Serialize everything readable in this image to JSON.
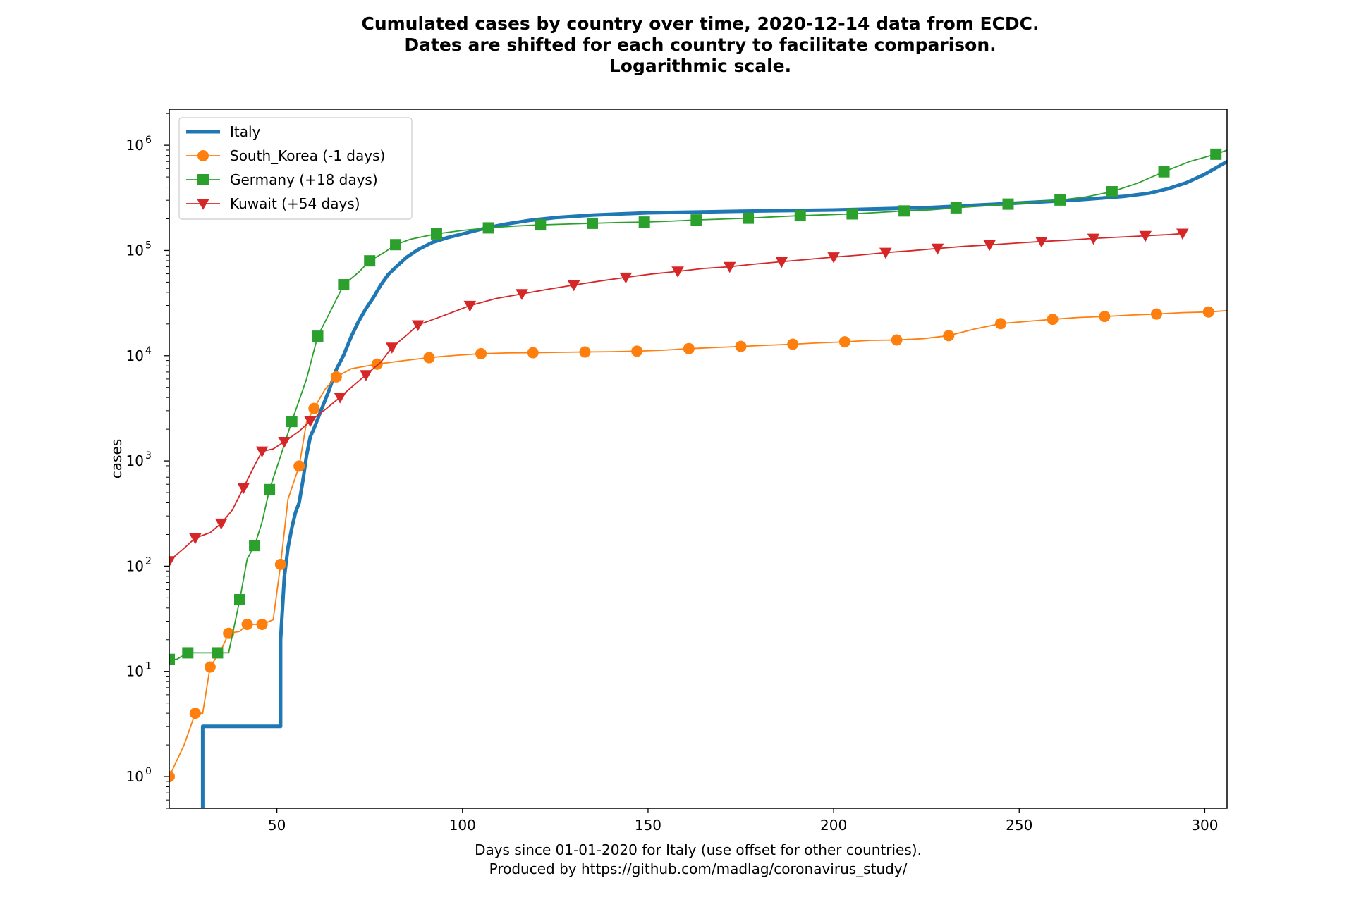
{
  "chart_data": {
    "type": "line",
    "title_lines": [
      "Cumulated cases by country over time, 2020-12-14 data from ECDC.",
      "Dates are shifted for each country to facilitate comparison.",
      "Logarithmic scale."
    ],
    "xlabel_lines": [
      "Days since 01-01-2020 for Italy (use offset for other countries).",
      "Produced by https://github.com/madlag/coronavirus_study/"
    ],
    "ylabel": "cases",
    "yscale": "log",
    "xlim": [
      21,
      306
    ],
    "ylim": [
      0.5,
      2200000
    ],
    "xticks": [
      50,
      100,
      150,
      200,
      250,
      300
    ],
    "yticks": [
      {
        "value": 1,
        "base": "10",
        "exp": "0"
      },
      {
        "value": 10,
        "base": "10",
        "exp": "1"
      },
      {
        "value": 100,
        "base": "10",
        "exp": "2"
      },
      {
        "value": 1000,
        "base": "10",
        "exp": "3"
      },
      {
        "value": 10000,
        "base": "10",
        "exp": "4"
      },
      {
        "value": 100000,
        "base": "10",
        "exp": "5"
      },
      {
        "value": 1000000,
        "base": "10",
        "exp": "6"
      }
    ],
    "legend_position": "top-left",
    "series": [
      {
        "name": "Italy",
        "color": "#1f77b4",
        "marker": "none",
        "width": 5,
        "step": true,
        "x": [
          30,
          30,
          51,
          51,
          52,
          53,
          54,
          55,
          56,
          57,
          58,
          59,
          60,
          62,
          64,
          66,
          68,
          70,
          72,
          74,
          76,
          78,
          80,
          82,
          85,
          88,
          92,
          96,
          100,
          106,
          112,
          118,
          125,
          135,
          150,
          175,
          200,
          225,
          250,
          265,
          278,
          285,
          290,
          295,
          300,
          306
        ],
        "y": [
          0.4,
          3,
          3,
          20,
          79,
          150,
          229,
          322,
          400,
          650,
          1128,
          1694,
          2036,
          3089,
          4636,
          7375,
          10149,
          15113,
          21157,
          27980,
          35713,
          47021,
          59138,
          69176,
          86498,
          101739,
          119827,
          132547,
          143626,
          162488,
          178972,
          192994,
          205463,
          217185,
          228006,
          235763,
          242639,
          255278,
          283000,
          301000,
          326000,
          350000,
          386000,
          440000,
          530000,
          700000
        ]
      },
      {
        "name": "South_Korea (-1 days)",
        "color": "#ff7f0e",
        "marker": "circle",
        "width": 1.8,
        "x": [
          21,
          25,
          28,
          30,
          32,
          35,
          37,
          40,
          42,
          44,
          46,
          49,
          51,
          53,
          56,
          58,
          60,
          63,
          66,
          70,
          77,
          84,
          91,
          98,
          105,
          112,
          119,
          126,
          133,
          140,
          147,
          154,
          161,
          168,
          175,
          182,
          189,
          196,
          203,
          210,
          217,
          224,
          231,
          238,
          245,
          252,
          259,
          266,
          273,
          280,
          287,
          294,
          301,
          306
        ],
        "y": [
          1,
          2,
          4,
          4,
          11,
          16,
          23,
          24,
          28,
          28,
          28,
          31,
          104,
          433,
          893,
          2337,
          3150,
          4812,
          6284,
          7513,
          8320,
          8961,
          9583,
          10062,
          10450,
          10613,
          10674,
          10761,
          10840,
          10909,
          11037,
          11265,
          11668,
          11947,
          12257,
          12563,
          12850,
          13244,
          13551,
          13979,
          14092,
          14499,
          15515,
          17945,
          20182,
          21177,
          22176,
          23106,
          23611,
          24353,
          24889,
          25698,
          26043,
          26800
        ]
      },
      {
        "name": "Germany (+18 days)",
        "color": "#2ca02c",
        "marker": "square",
        "width": 1.8,
        "x": [
          21,
          23,
          26,
          30,
          34,
          37,
          40,
          42,
          44,
          46,
          48,
          51,
          54,
          58,
          61,
          65,
          68,
          72,
          75,
          79,
          82,
          86,
          93,
          100,
          107,
          114,
          121,
          128,
          135,
          142,
          149,
          156,
          163,
          170,
          177,
          184,
          191,
          198,
          205,
          212,
          219,
          226,
          233,
          240,
          247,
          254,
          261,
          268,
          275,
          282,
          289,
          296,
          303,
          306
        ],
        "y": [
          13,
          13,
          15,
          15,
          15,
          15,
          48,
          117,
          157,
          262,
          534,
          1112,
          2369,
          6012,
          15320,
          29056,
          47278,
          61913,
          79696,
          96092,
          113525,
          127854,
          143724,
          154999,
          163860,
          170588,
          175233,
          178281,
          181196,
          184193,
          186269,
          189817,
          195042,
          198804,
          202735,
          208698,
          214214,
          218519,
          222828,
          229706,
          237583,
          243305,
          254474,
          264375,
          275927,
          288631,
          301573,
          322864,
          361974,
          437866,
          560379,
          701742,
          822047,
          900000
        ]
      },
      {
        "name": "Kuwait (+54 days)",
        "color": "#d62728",
        "marker": "triangle-down",
        "width": 1.8,
        "x": [
          21,
          25,
          28,
          32,
          35,
          38,
          41,
          44,
          46,
          49,
          52,
          56,
          59,
          63,
          67,
          70,
          74,
          78,
          81,
          85,
          88,
          95,
          102,
          109,
          116,
          123,
          130,
          137,
          144,
          151,
          158,
          165,
          172,
          179,
          186,
          193,
          200,
          207,
          214,
          221,
          228,
          235,
          242,
          249,
          256,
          263,
          270,
          277,
          284,
          291,
          294
        ],
        "y": [
          112,
          148,
          185,
          208,
          255,
          342,
          556,
          910,
          1234,
          1300,
          1524,
          1915,
          2399,
          3075,
          4024,
          4983,
          6567,
          8688,
          11975,
          15691,
          19564,
          24112,
          29921,
          34952,
          38678,
          42788,
          46940,
          51245,
          55508,
          59763,
          63309,
          67448,
          70045,
          74486,
          78145,
          82271,
          86478,
          90387,
          95472,
          99434,
          104568,
          109257,
          113095,
          117495,
          121635,
          125337,
          130000,
          134000,
          138000,
          142000,
          145000
        ]
      }
    ]
  }
}
